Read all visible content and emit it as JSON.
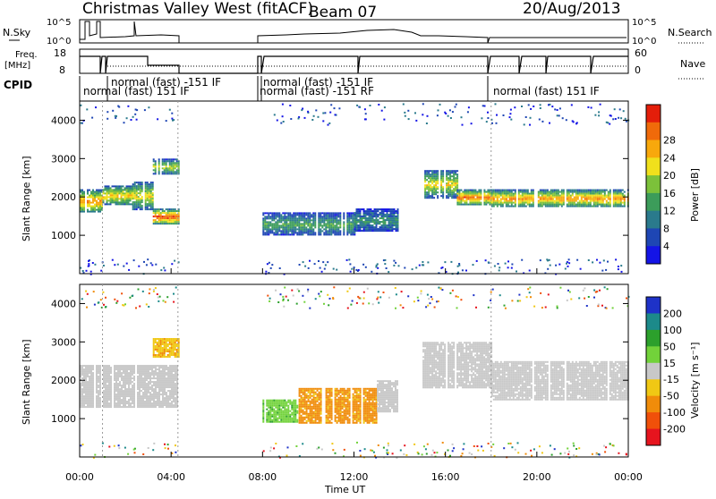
{
  "header": {
    "title": "Christmas Valley West (fitACF)",
    "beam": "Beam 07",
    "date": "20/Aug/2013"
  },
  "params_panel": {
    "nsky_label": "N.Sky",
    "nsky_ticks": [
      "10^5",
      "10^0"
    ],
    "nsearch_label": "N.Search",
    "nsearch_ticks": [
      "10^5",
      "10^0"
    ],
    "freq_label_line1": "Freq.",
    "freq_label_line2": "[MHz]",
    "freq_ticks": [
      "18",
      "8"
    ],
    "nave_label": "Nave",
    "nave_ticks": [
      "60",
      "0"
    ]
  },
  "cpid": {
    "label": "CPID",
    "entries": [
      "normal (fast)  -151 IF",
      "normal (fast) 151 IF",
      "normal (fast)  -151 IF",
      "normal (fast)  -151 RF",
      "normal (fast) 151 IF"
    ]
  },
  "chart_data": [
    {
      "type": "heatmap",
      "name": "power-panel",
      "ylabel": "Slant Range [km]",
      "ylim": [
        0,
        4500
      ],
      "yticks": [
        "1000",
        "2000",
        "3000",
        "4000"
      ],
      "xlim": [
        "00:00",
        "24:00"
      ],
      "colorbar": {
        "label": "Power [dB]",
        "ticks": [
          "4",
          "8",
          "12",
          "16",
          "20",
          "24",
          "28"
        ],
        "colors": [
          "#1414e6",
          "#1e46b4",
          "#2a7a8c",
          "#3c9c5a",
          "#7cc13a",
          "#f0e01c",
          "#f8a80c",
          "#f06a0a",
          "#e41e0a"
        ]
      },
      "bands": [
        {
          "start": 0.0,
          "end": 1.0,
          "range": [
            1600,
            2200
          ],
          "power": 22
        },
        {
          "start": 1.0,
          "end": 2.3,
          "range": [
            1800,
            2300
          ],
          "power": 20
        },
        {
          "start": 2.3,
          "end": 3.2,
          "range": [
            1700,
            2400
          ],
          "power": 18
        },
        {
          "start": 3.2,
          "end": 4.3,
          "range": [
            1300,
            1700
          ],
          "power": 26
        },
        {
          "start": 3.2,
          "end": 4.3,
          "range": [
            2600,
            3000
          ],
          "power": 16
        },
        {
          "start": 8.0,
          "end": 12.0,
          "range": [
            1000,
            1600
          ],
          "power": 12
        },
        {
          "start": 12.0,
          "end": 14.0,
          "range": [
            1100,
            1700
          ],
          "power": 10
        },
        {
          "start": 15.0,
          "end": 16.5,
          "range": [
            2000,
            2700
          ],
          "power": 18
        },
        {
          "start": 16.5,
          "end": 18.0,
          "range": [
            1800,
            2200
          ],
          "power": 24
        },
        {
          "start": 18.0,
          "end": 24.0,
          "range": [
            1750,
            2200
          ],
          "power": 22
        }
      ]
    },
    {
      "type": "heatmap",
      "name": "velocity-panel",
      "ylabel": "Slant Range [km]",
      "ylim": [
        0,
        4500
      ],
      "yticks": [
        "1000",
        "2000",
        "3000",
        "4000"
      ],
      "xlabel": "Time UT",
      "xticks": [
        "00:00",
        "04:00",
        "08:00",
        "12:00",
        "16:00",
        "20:00",
        "00:00"
      ],
      "colorbar": {
        "label": "Velocity [m s⁻¹]",
        "ticks": [
          "200",
          "100",
          "50",
          "15",
          "-15",
          "-50",
          "-100",
          "-200"
        ],
        "colors": [
          "#1e32c8",
          "#1c8a8a",
          "#2ca02c",
          "#72d23a",
          "#c8c8c8",
          "#f0c814",
          "#f08c0a",
          "#f0500a",
          "#e6141e"
        ]
      },
      "bands": [
        {
          "start": 0.0,
          "end": 4.3,
          "range": [
            1300,
            2400
          ],
          "velocity": 0
        },
        {
          "start": 3.2,
          "end": 4.3,
          "range": [
            2600,
            3100
          ],
          "velocity": -40
        },
        {
          "start": 8.0,
          "end": 9.5,
          "range": [
            900,
            1500
          ],
          "velocity": 40
        },
        {
          "start": 9.5,
          "end": 13.0,
          "range": [
            900,
            1800
          ],
          "velocity": -60
        },
        {
          "start": 13.0,
          "end": 14.0,
          "range": [
            1200,
            2000
          ],
          "velocity": 0
        },
        {
          "start": 15.0,
          "end": 18.0,
          "range": [
            1800,
            3000
          ],
          "velocity": 0
        },
        {
          "start": 18.0,
          "end": 24.0,
          "range": [
            1500,
            2500
          ],
          "velocity": 0
        }
      ]
    }
  ]
}
